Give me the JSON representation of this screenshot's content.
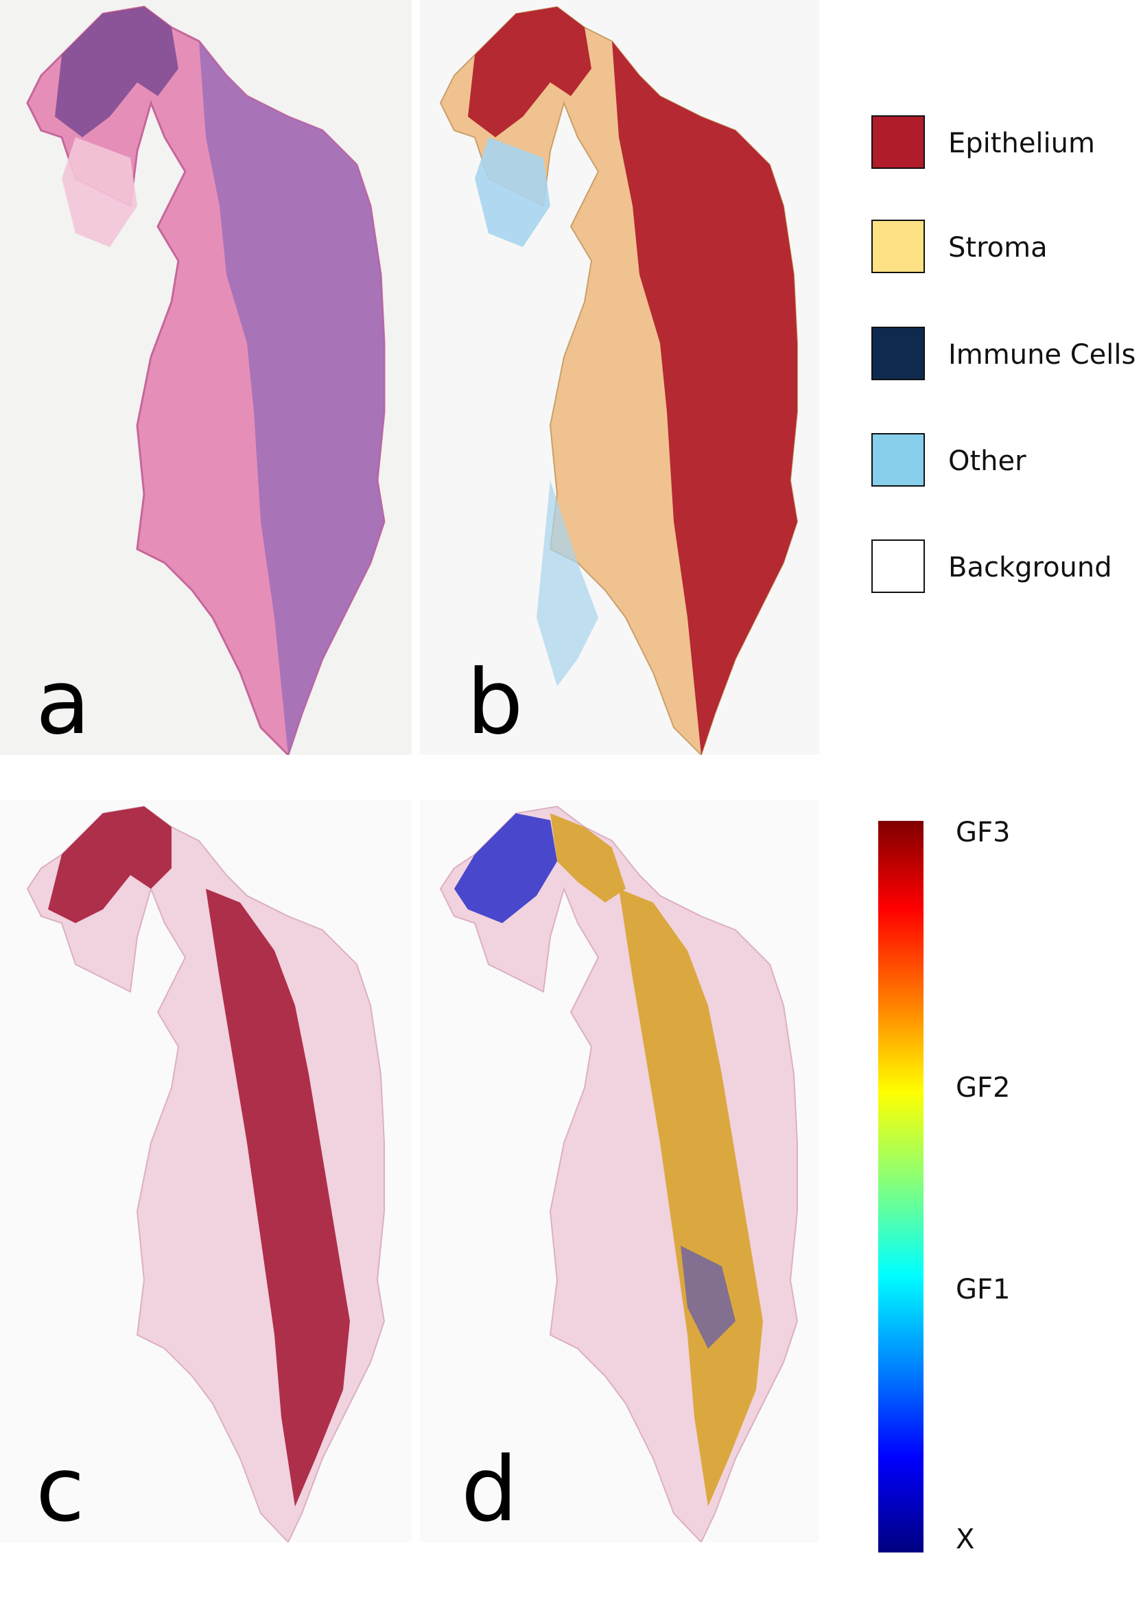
{
  "panels": {
    "a": {
      "letter": "a"
    },
    "b": {
      "letter": "b"
    },
    "c": {
      "letter": "c"
    },
    "d": {
      "letter": "d"
    }
  },
  "legend": {
    "items": [
      {
        "label": "Epithelium",
        "color": "#b01c2a"
      },
      {
        "label": "Stroma",
        "color": "#fde184"
      },
      {
        "label": "Immune Cells",
        "color": "#0f2a4f"
      },
      {
        "label": "Other",
        "color": "#87ceeb"
      },
      {
        "label": "Background",
        "color": "#ffffff"
      }
    ]
  },
  "colorbar": {
    "colormap": "jet",
    "labels": {
      "top": "GF3",
      "upper_mid": "GF2",
      "lower_mid": "GF1",
      "bottom": "X"
    }
  }
}
